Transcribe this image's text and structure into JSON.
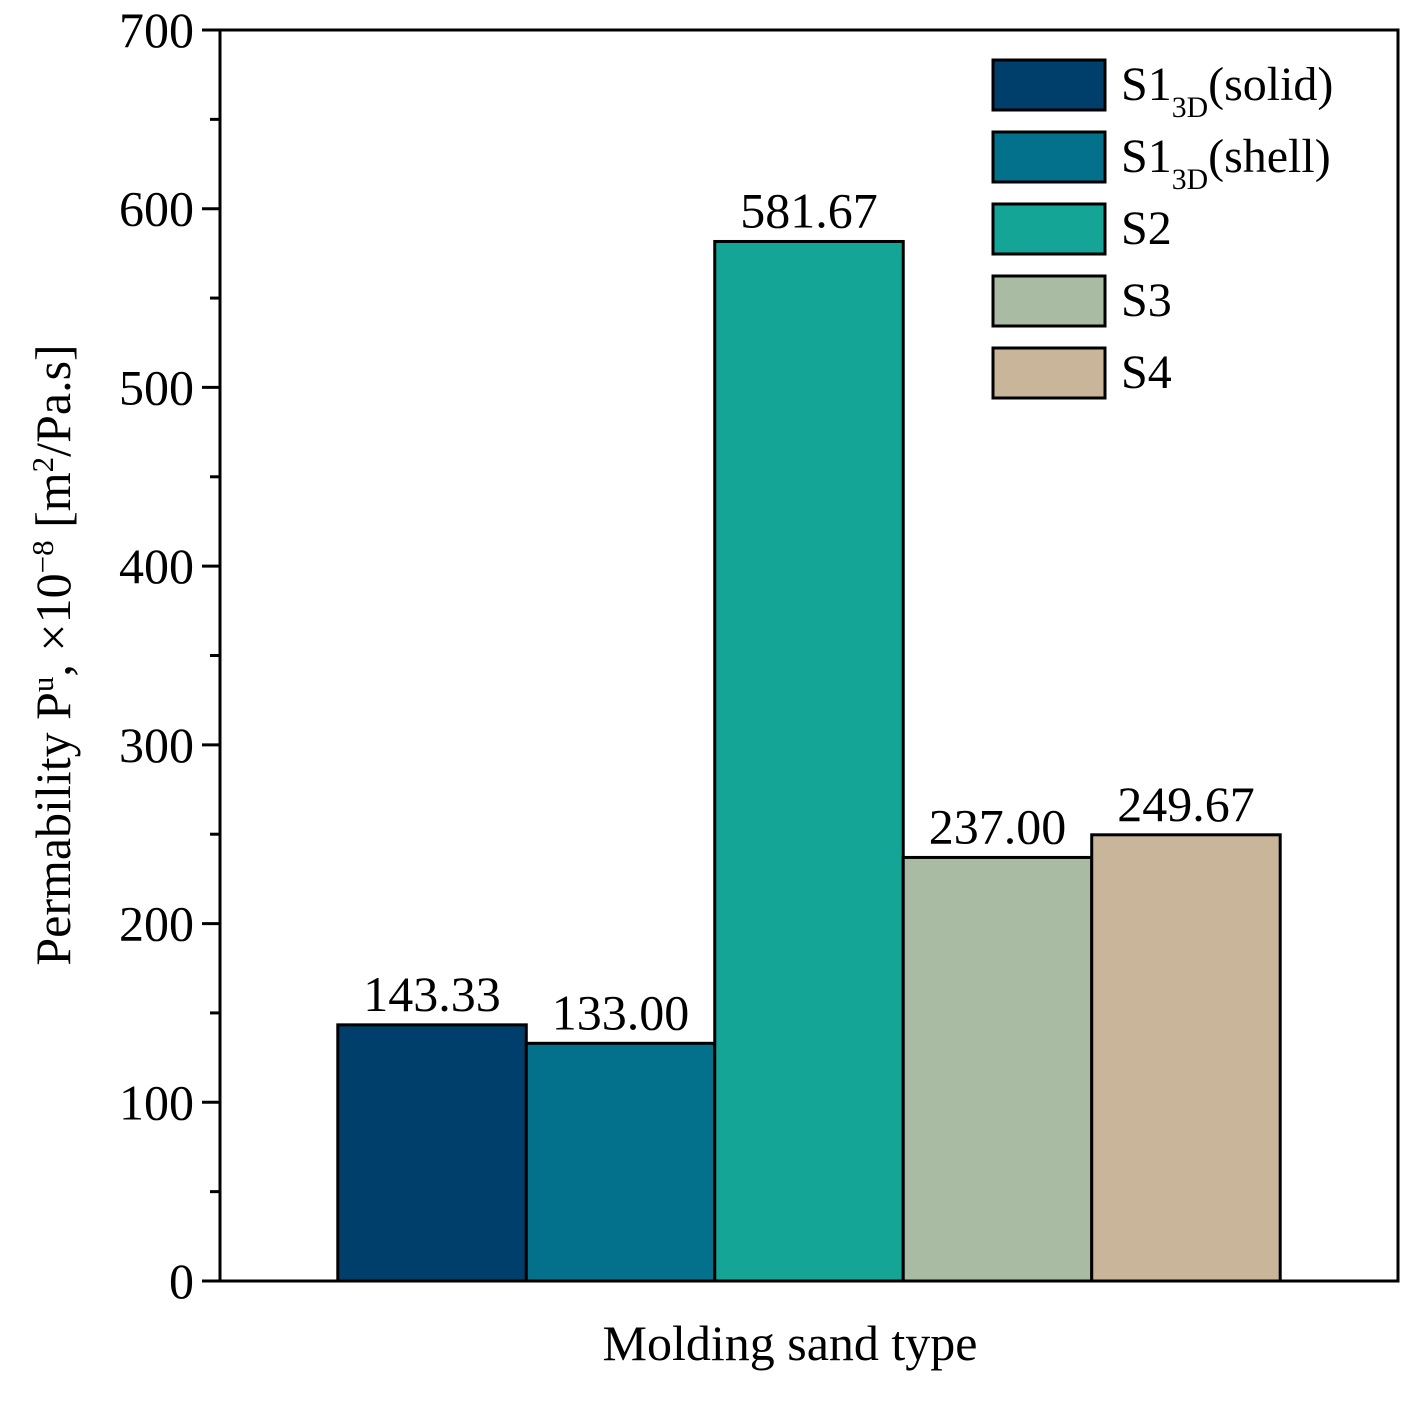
{
  "chart_data": {
    "type": "bar",
    "xlabel": "Molding sand type",
    "ylabel": "Permability P^{u}, ×10^{−8} [m^{2}/Pa.s]",
    "categories": [
      null
    ],
    "series": [
      {
        "name": "S1_{3D}(solid)",
        "color": "#003f6b",
        "values": [
          143.33
        ],
        "value_labels": [
          "143.33"
        ]
      },
      {
        "name": "S1_{3D}(shell)",
        "color": "#03718c",
        "values": [
          133
        ],
        "value_labels": [
          "133.00"
        ]
      },
      {
        "name": "S2",
        "color": "#14a597",
        "values": [
          581.67
        ],
        "value_labels": [
          "581.67"
        ]
      },
      {
        "name": "S3",
        "color": "#a9bca3",
        "values": [
          237
        ],
        "value_labels": [
          "237.00"
        ]
      },
      {
        "name": "S4",
        "color": "#c9b69a",
        "values": [
          249.67
        ],
        "value_labels": [
          "249.67"
        ]
      }
    ],
    "ylim": [
      0,
      700
    ],
    "yticks": [
      0,
      100,
      200,
      300,
      400,
      500,
      600,
      700
    ],
    "minor_yticks": [
      50,
      150,
      250,
      350,
      450,
      550,
      650
    ],
    "legend": "upper right"
  }
}
